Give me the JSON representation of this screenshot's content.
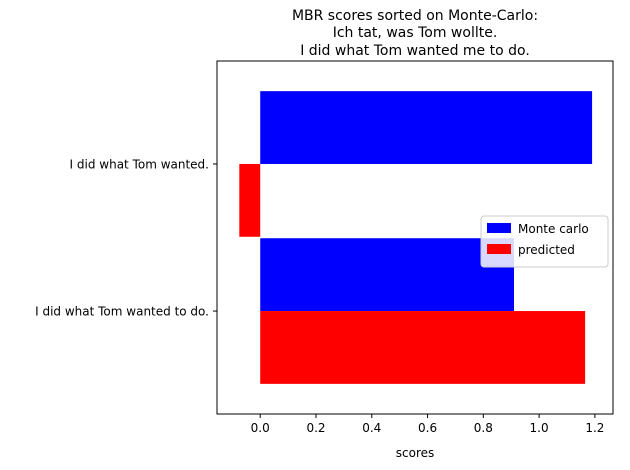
{
  "chart_data": {
    "type": "bar",
    "orientation": "horizontal",
    "title_lines": [
      "MBR scores sorted on Monte-Carlo:",
      "Ich tat, was Tom wollte.",
      "I did what Tom wanted me to do."
    ],
    "xlabel": "scores",
    "ylabel": "",
    "categories": [
      "I did what Tom wanted.",
      "I did what Tom wanted to do."
    ],
    "series": [
      {
        "name": "Monte carlo",
        "color": "#0000ff",
        "values": [
          1.19,
          0.91
        ]
      },
      {
        "name": "predicted",
        "color": "#ff0000",
        "values": [
          -0.075,
          1.165
        ]
      }
    ],
    "xlim": [
      -0.155,
      1.265
    ],
    "xticks": [
      "0.0",
      "0.2",
      "0.4",
      "0.6",
      "0.8",
      "1.0",
      "1.2"
    ],
    "xtick_values": [
      0,
      0.2,
      0.4,
      0.6,
      0.8,
      1.0,
      1.2
    ],
    "grid": false,
    "legend_position": "center-right"
  }
}
